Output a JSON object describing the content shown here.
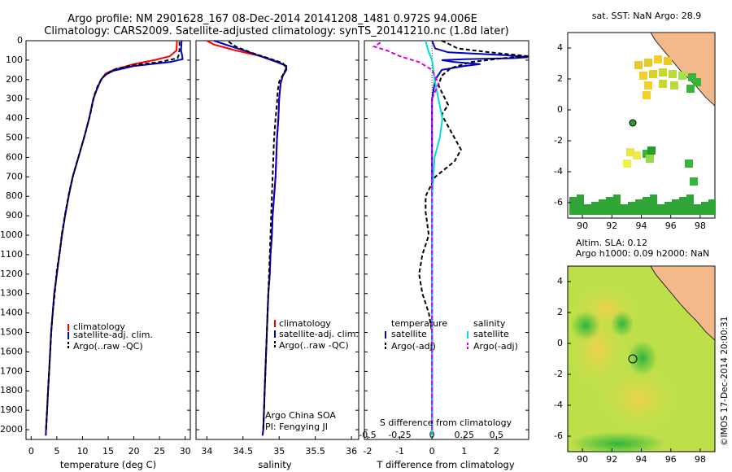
{
  "header": {
    "line1": "Argo profile: NM 2901628_167 08-Dec-2014 20141208_1481 0.972S 94.006E",
    "line2": "Climatology: CARS2009. Satellite-adjusted climatology: synTS_20141210.nc (1.8d later)"
  },
  "colors": {
    "climatology": "#ff0000",
    "satellite": "#0000cc",
    "argo": "#000000",
    "sal_satellite": "#00dddd",
    "sal_argo": "#dd00dd",
    "land": "#f4b98a"
  },
  "depth_ticks": [
    "0",
    "100",
    "200",
    "300",
    "400",
    "500",
    "600",
    "700",
    "800",
    "900",
    "1000",
    "1100",
    "1200",
    "1300",
    "1400",
    "1500",
    "1600",
    "1700",
    "1800",
    "1900",
    "2000"
  ],
  "temperature_panel": {
    "xlabel": "temperature (deg C)",
    "xticks": [
      "0",
      "5",
      "10",
      "15",
      "20",
      "25",
      "30"
    ],
    "legend": [
      "climatology",
      "satellite-adj. clim.",
      "Argo(..raw -QC)"
    ]
  },
  "salinity_panel": {
    "xlabel": "salinity",
    "xticks": [
      "34",
      "34.5",
      "35",
      "35.5",
      "36"
    ],
    "legend": [
      "climatology",
      "satellite-adj. clim.",
      "Argo(..raw -QC)"
    ],
    "note1": "Argo China SOA",
    "note2": "PI: Fengying JI"
  },
  "difference_panel": {
    "xlabel": "T difference from climatology",
    "top_label": "S difference from climatology",
    "xticks_t": [
      "-2",
      "-1",
      "0",
      "1",
      "2"
    ],
    "xticks_s": [
      "-0.5",
      "-0.25",
      "0",
      "0.25",
      "0.5"
    ],
    "legend_t_title": "temperature",
    "legend_s_title": "salinity",
    "legend_t": [
      "satellite",
      "Argo(-adj)"
    ],
    "legend_s": [
      "satellite",
      "Argo(-adj)"
    ]
  },
  "map_sst": {
    "title": "sat. SST: NaN Argo: 28.9",
    "xticks": [
      "90",
      "92",
      "94",
      "96",
      "98"
    ],
    "yticks": [
      "4",
      "2",
      "0",
      "-2",
      "-4",
      "-6"
    ]
  },
  "map_sla": {
    "title1": "Altim. SLA: 0.12",
    "title2": "Argo h1000: 0.09 h2000: NaN",
    "xticks": [
      "90",
      "92",
      "94",
      "96",
      "98"
    ],
    "yticks": [
      "4",
      "2",
      "0",
      "-2",
      "-4",
      "-6"
    ]
  },
  "credit": "©IMOS 17-Dec-2014 20:00:31",
  "chart_data": [
    {
      "type": "line",
      "xlabel": "temperature (deg C)",
      "xlim": [
        -1,
        31
      ],
      "ylim": [
        2050,
        0
      ],
      "series": [
        {
          "name": "climatology",
          "color": "#ff0000",
          "points": [
            [
              28.4,
              0
            ],
            [
              28.3,
              50
            ],
            [
              27,
              80
            ],
            [
              24,
              100
            ],
            [
              20,
              120
            ],
            [
              16,
              150
            ],
            [
              14.5,
              170
            ],
            [
              13.6,
              200
            ],
            [
              12.8,
              250
            ],
            [
              12.1,
              300
            ],
            [
              11.3,
              400
            ],
            [
              10.3,
              500
            ],
            [
              9.2,
              600
            ],
            [
              8.1,
              700
            ],
            [
              7.3,
              800
            ],
            [
              6.6,
              900
            ],
            [
              6.0,
              1000
            ],
            [
              5.5,
              1100
            ],
            [
              5.0,
              1200
            ],
            [
              4.5,
              1300
            ],
            [
              4.2,
              1400
            ],
            [
              3.9,
              1500
            ],
            [
              3.7,
              1600
            ],
            [
              3.5,
              1700
            ],
            [
              3.3,
              1800
            ],
            [
              3.1,
              1900
            ],
            [
              2.9,
              2000
            ],
            [
              2.85,
              2030
            ]
          ]
        },
        {
          "name": "satellite-adj. clim.",
          "color": "#0000cc",
          "points": [
            [
              29.3,
              0
            ],
            [
              29.2,
              50
            ],
            [
              29.4,
              75
            ],
            [
              29.5,
              95
            ],
            [
              27,
              110
            ],
            [
              20,
              130
            ],
            [
              16,
              155
            ],
            [
              14.5,
              175
            ],
            [
              13.6,
              200
            ],
            [
              12.8,
              250
            ],
            [
              12.1,
              300
            ],
            [
              11.3,
              400
            ],
            [
              10.3,
              500
            ],
            [
              9.2,
              600
            ],
            [
              8.1,
              700
            ],
            [
              7.3,
              800
            ],
            [
              6.6,
              900
            ],
            [
              6.0,
              1000
            ],
            [
              5.5,
              1100
            ],
            [
              5.0,
              1200
            ],
            [
              4.5,
              1300
            ],
            [
              4.2,
              1400
            ],
            [
              3.9,
              1500
            ],
            [
              3.7,
              1600
            ],
            [
              3.5,
              1700
            ],
            [
              3.3,
              1800
            ],
            [
              3.1,
              1900
            ],
            [
              2.9,
              2000
            ],
            [
              2.85,
              2030
            ]
          ]
        },
        {
          "name": "Argo(..raw -QC)",
          "color": "#000000",
          "dashed": true,
          "points": [
            [
              28.9,
              5
            ],
            [
              28.9,
              40
            ],
            [
              28.8,
              70
            ],
            [
              28.5,
              90
            ],
            [
              25,
              110
            ],
            [
              20,
              125
            ],
            [
              16.5,
              145
            ],
            [
              15,
              165
            ],
            [
              13.9,
              190
            ],
            [
              13,
              230
            ],
            [
              12.3,
              280
            ],
            [
              11.5,
              380
            ],
            [
              10.5,
              480
            ],
            [
              9.4,
              580
            ],
            [
              8.3,
              680
            ],
            [
              7.4,
              780
            ],
            [
              6.7,
              880
            ],
            [
              6.0,
              990
            ],
            [
              5.6,
              1080
            ],
            [
              5.0,
              1180
            ],
            [
              4.6,
              1300
            ],
            [
              4.2,
              1400
            ],
            [
              3.9,
              1500
            ],
            [
              3.7,
              1600
            ],
            [
              3.5,
              1700
            ],
            [
              3.3,
              1800
            ],
            [
              3.1,
              1900
            ],
            [
              2.9,
              2000
            ]
          ]
        }
      ]
    },
    {
      "type": "line",
      "xlabel": "salinity",
      "xlim": [
        33.85,
        36.1
      ],
      "ylim": [
        2050,
        0
      ],
      "series": [
        {
          "name": "climatology",
          "color": "#ff0000",
          "points": [
            [
              34.0,
              0
            ],
            [
              34.1,
              20
            ],
            [
              34.4,
              50
            ],
            [
              34.75,
              80
            ],
            [
              34.95,
              105
            ],
            [
              35.08,
              125
            ],
            [
              35.1,
              145
            ],
            [
              35.05,
              180
            ],
            [
              35.02,
              220
            ],
            [
              35.0,
              300
            ],
            [
              34.99,
              400
            ],
            [
              34.97,
              500
            ],
            [
              34.96,
              600
            ],
            [
              34.95,
              700
            ],
            [
              34.93,
              800
            ],
            [
              34.91,
              900
            ],
            [
              34.9,
              1000
            ],
            [
              34.88,
              1100
            ],
            [
              34.87,
              1200
            ],
            [
              34.85,
              1300
            ],
            [
              34.84,
              1400
            ],
            [
              34.83,
              1500
            ],
            [
              34.82,
              1600
            ],
            [
              34.81,
              1700
            ],
            [
              34.8,
              1800
            ],
            [
              34.79,
              1900
            ],
            [
              34.78,
              2000
            ],
            [
              34.77,
              2030
            ]
          ]
        },
        {
          "name": "satellite-adj. clim.",
          "color": "#0000cc",
          "points": [
            [
              34.1,
              0
            ],
            [
              34.3,
              25
            ],
            [
              34.55,
              55
            ],
            [
              34.78,
              85
            ],
            [
              34.97,
              110
            ],
            [
              35.1,
              130
            ],
            [
              35.1,
              150
            ],
            [
              35.05,
              180
            ],
            [
              35.02,
              220
            ],
            [
              35.0,
              300
            ],
            [
              34.99,
              400
            ],
            [
              34.97,
              500
            ],
            [
              34.96,
              600
            ],
            [
              34.95,
              700
            ],
            [
              34.93,
              800
            ],
            [
              34.91,
              900
            ],
            [
              34.9,
              1000
            ],
            [
              34.88,
              1100
            ],
            [
              34.87,
              1200
            ],
            [
              34.85,
              1300
            ],
            [
              34.84,
              1400
            ],
            [
              34.83,
              1500
            ],
            [
              34.82,
              1600
            ],
            [
              34.81,
              1700
            ],
            [
              34.8,
              1800
            ],
            [
              34.79,
              1900
            ],
            [
              34.78,
              2000
            ],
            [
              34.77,
              2030
            ]
          ]
        },
        {
          "name": "Argo(..raw -QC)",
          "color": "#000000",
          "dashed": true,
          "points": [
            [
              34.3,
              5
            ],
            [
              34.4,
              30
            ],
            [
              34.6,
              60
            ],
            [
              34.85,
              90
            ],
            [
              35.05,
              115
            ],
            [
              35.1,
              140
            ],
            [
              35.06,
              170
            ],
            [
              35.0,
              210
            ],
            [
              34.98,
              260
            ],
            [
              34.97,
              320
            ],
            [
              34.95,
              400
            ],
            [
              34.93,
              500
            ],
            [
              34.92,
              600
            ],
            [
              34.91,
              700
            ],
            [
              34.9,
              800
            ],
            [
              34.89,
              900
            ],
            [
              34.88,
              1000
            ],
            [
              34.87,
              1100
            ],
            [
              34.86,
              1200
            ],
            [
              34.85,
              1300
            ],
            [
              34.84,
              1400
            ],
            [
              34.83,
              1500
            ],
            [
              34.82,
              1600
            ],
            [
              34.81,
              1700
            ],
            [
              34.8,
              1800
            ],
            [
              34.79,
              1900
            ],
            [
              34.78,
              2000
            ]
          ]
        }
      ]
    },
    {
      "type": "line",
      "xlabel": "T difference from climatology",
      "xlim": [
        -2.1,
        3.0
      ],
      "ylim": [
        2050,
        0
      ],
      "series": [
        {
          "name": "satellite",
          "color": "#0000cc",
          "quantity": "temperature",
          "points": [
            [
              0.0,
              0
            ],
            [
              0.1,
              40
            ],
            [
              0.5,
              60
            ],
            [
              2.3,
              75
            ],
            [
              3.0,
              85
            ],
            [
              2.5,
              90
            ],
            [
              1.0,
              95
            ],
            [
              0.3,
              100
            ],
            [
              0.7,
              110
            ],
            [
              1.5,
              120
            ],
            [
              1.0,
              130
            ],
            [
              0.3,
              150
            ],
            [
              0.1,
              200
            ],
            [
              0,
              300
            ],
            [
              0,
              2030
            ]
          ]
        },
        {
          "name": "Argo(-adj)",
          "color": "#000000",
          "dashed": true,
          "quantity": "temperature",
          "points": [
            [
              0.3,
              0
            ],
            [
              0.5,
              15
            ],
            [
              0.8,
              40
            ],
            [
              1.8,
              60
            ],
            [
              3.0,
              80
            ],
            [
              2.2,
              90
            ],
            [
              1.2,
              110
            ],
            [
              0.6,
              140
            ],
            [
              0.3,
              180
            ],
            [
              0.2,
              230
            ],
            [
              0.5,
              330
            ],
            [
              0.3,
              380
            ],
            [
              0.6,
              470
            ],
            [
              0.9,
              560
            ],
            [
              0.7,
              620
            ],
            [
              0.1,
              700
            ],
            [
              -0.2,
              800
            ],
            [
              -0.2,
              880
            ],
            [
              -0.1,
              1000
            ],
            [
              -0.3,
              1100
            ],
            [
              -0.4,
              1200
            ],
            [
              -0.3,
              1300
            ],
            [
              -0.1,
              1400
            ],
            [
              0,
              1500
            ],
            [
              0,
              2000
            ]
          ]
        },
        {
          "name": "satellite",
          "color": "#00dddd",
          "quantity": "salinity",
          "points": [
            [
              -0.05,
              0
            ],
            [
              -0.03,
              50
            ],
            [
              0,
              100
            ],
            [
              0.02,
              200
            ],
            [
              0.05,
              300
            ],
            [
              0.08,
              400
            ],
            [
              0.06,
              500
            ],
            [
              0.02,
              600
            ],
            [
              0,
              800
            ],
            [
              0,
              2030
            ]
          ]
        },
        {
          "name": "Argo(-adj)",
          "color": "#dd00dd",
          "dashed": true,
          "quantity": "salinity",
          "points": [
            [
              -0.4,
              10
            ],
            [
              -0.45,
              30
            ],
            [
              -0.35,
              50
            ],
            [
              -0.25,
              80
            ],
            [
              -0.1,
              110
            ],
            [
              0,
              150
            ],
            [
              0.05,
              220
            ],
            [
              0,
              300
            ],
            [
              0,
              2000
            ]
          ]
        }
      ]
    }
  ]
}
